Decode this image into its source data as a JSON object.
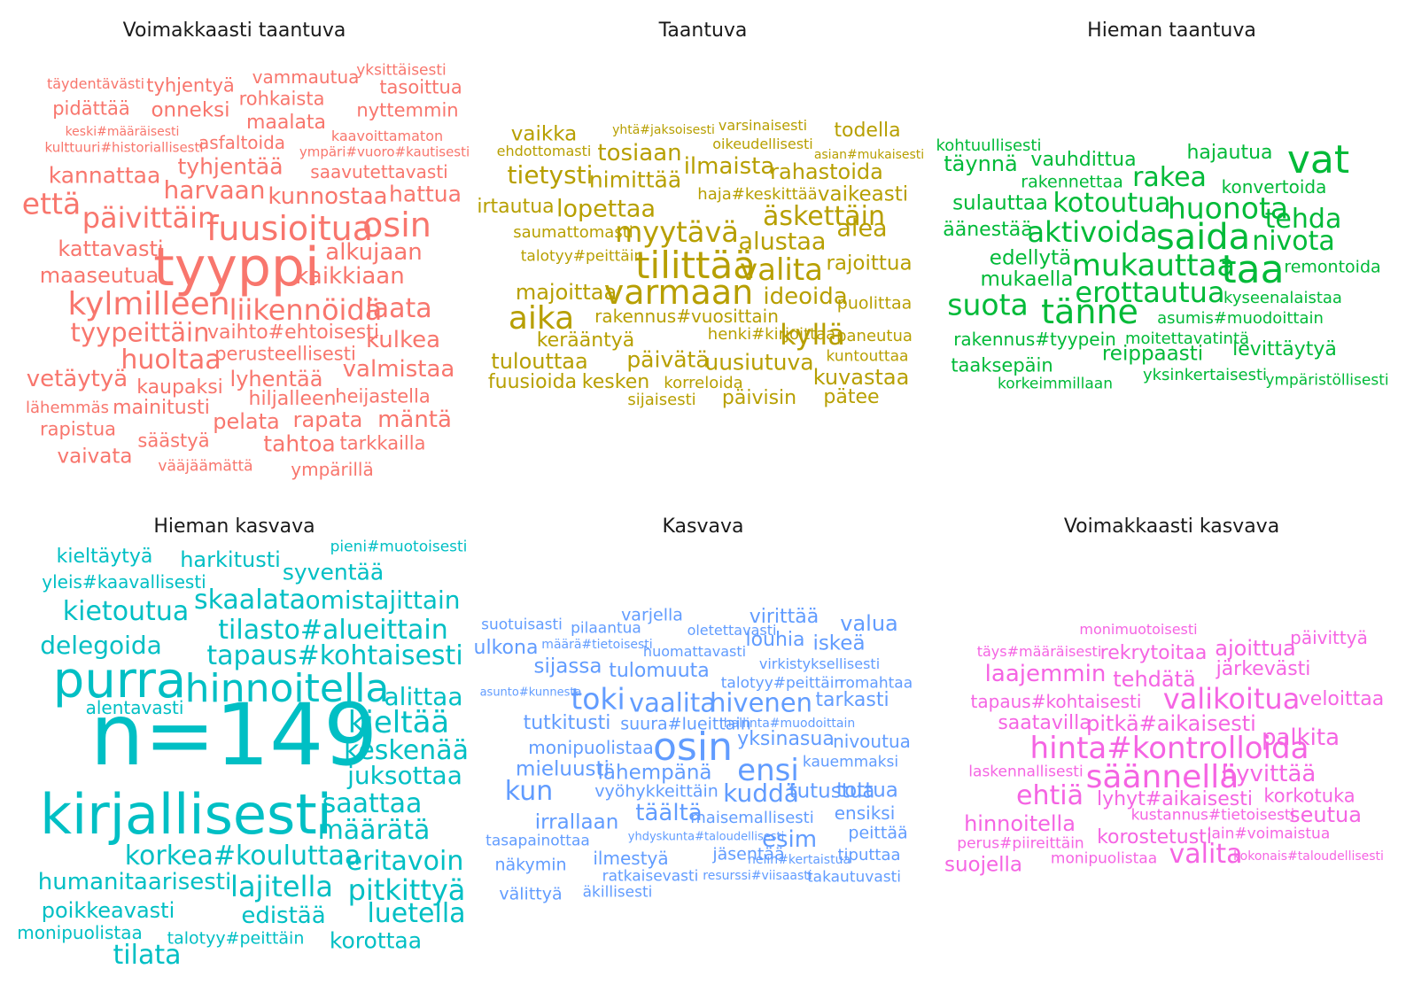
{
  "panels": [
    {
      "title": "Voimakkaasti taantuva",
      "color": "#F8766D",
      "words": [
        {
          "t": "täydentävästi",
          "s": 16
        },
        {
          "t": "tyhjentyä",
          "s": 21
        },
        {
          "t": "vammautua",
          "s": 20
        },
        {
          "t": "yksittäisesti",
          "s": 17
        },
        {
          "t": "tasoittua",
          "s": 21
        },
        {
          "t": "pidättää",
          "s": 21
        },
        {
          "t": "onneksi",
          "s": 23
        },
        {
          "t": "rohkaista",
          "s": 21
        },
        {
          "t": "nyttemmin",
          "s": 21
        },
        {
          "t": "keski#määräisesti",
          "s": 14
        },
        {
          "t": "maalata",
          "s": 22
        },
        {
          "t": "kaavoittamaton",
          "s": 16
        },
        {
          "t": "kulttuuri#historiallisesti",
          "s": 15
        },
        {
          "t": "asfaltoida",
          "s": 20
        },
        {
          "t": "ympäri#vuoro#kautisesti",
          "s": 15
        },
        {
          "t": "kannattaa",
          "s": 25
        },
        {
          "t": "tyhjentää",
          "s": 25
        },
        {
          "t": "saavutettavasti",
          "s": 20
        },
        {
          "t": "harvaan",
          "s": 28
        },
        {
          "t": "kunnostaa",
          "s": 26
        },
        {
          "t": "hattua",
          "s": 25
        },
        {
          "t": "että",
          "s": 33
        },
        {
          "t": "päivittäin",
          "s": 32
        },
        {
          "t": "fuusioitua",
          "s": 38
        },
        {
          "t": "osin",
          "s": 38
        },
        {
          "t": "kattavasti",
          "s": 24
        },
        {
          "t": "alkujaan",
          "s": 26
        },
        {
          "t": "maaseutua",
          "s": 24
        },
        {
          "t": "tyyppi",
          "s": 60
        },
        {
          "t": "kaikkiaan",
          "s": 26
        },
        {
          "t": "kylmilleen",
          "s": 36
        },
        {
          "t": "liikennöidä",
          "s": 32
        },
        {
          "t": "laata",
          "s": 30
        },
        {
          "t": "tyypeittäin",
          "s": 29
        },
        {
          "t": "vaihto#ehtoisesti",
          "s": 22
        },
        {
          "t": "kulkea",
          "s": 26
        },
        {
          "t": "huoltaa",
          "s": 30
        },
        {
          "t": "perusteellisesti",
          "s": 21
        },
        {
          "t": "valmistaa",
          "s": 26
        },
        {
          "t": "vetäytyä",
          "s": 26
        },
        {
          "t": "kaupaksi",
          "s": 22
        },
        {
          "t": "lyhentää",
          "s": 24
        },
        {
          "t": "hiljalleen",
          "s": 22
        },
        {
          "t": "heijastella",
          "s": 21
        },
        {
          "t": "lähemmäs",
          "s": 18
        },
        {
          "t": "mainitusti",
          "s": 22
        },
        {
          "t": "pelata",
          "s": 24
        },
        {
          "t": "rapata",
          "s": 24
        },
        {
          "t": "mäntä",
          "s": 26
        },
        {
          "t": "rapistua",
          "s": 21
        },
        {
          "t": "säästyä",
          "s": 21
        },
        {
          "t": "tahtoa",
          "s": 25
        },
        {
          "t": "tarkkailla",
          "s": 21
        },
        {
          "t": "vaivata",
          "s": 23
        },
        {
          "t": "vääjäämättä",
          "s": 17
        },
        {
          "t": "ympärillä",
          "s": 20
        }
      ]
    },
    {
      "title": "Taantuva",
      "color": "#B79F00",
      "words": [
        {
          "t": "vaikka",
          "s": 23
        },
        {
          "t": "yhtä#jaksoisesti",
          "s": 14
        },
        {
          "t": "varsinaisesti",
          "s": 16
        },
        {
          "t": "todella",
          "s": 22
        },
        {
          "t": "ehdottomasti",
          "s": 16
        },
        {
          "t": "oikeudellisesti",
          "s": 16
        },
        {
          "t": "asian#mukaisesti",
          "s": 14
        },
        {
          "t": "tosiaan",
          "s": 26
        },
        {
          "t": "ilmaista",
          "s": 26
        },
        {
          "t": "tietysti",
          "s": 28
        },
        {
          "t": "nimittää",
          "s": 25
        },
        {
          "t": "rahastoida",
          "s": 24
        },
        {
          "t": "haja#keskittää",
          "s": 18
        },
        {
          "t": "vaikeasti",
          "s": 23
        },
        {
          "t": "irtautua",
          "s": 22
        },
        {
          "t": "lopettaa",
          "s": 27
        },
        {
          "t": "äskettäin",
          "s": 30
        },
        {
          "t": "saumattomasti",
          "s": 18
        },
        {
          "t": "myytävä",
          "s": 32
        },
        {
          "t": "alustaa",
          "s": 27
        },
        {
          "t": "alea",
          "s": 27
        },
        {
          "t": "talotyy#peittäin",
          "s": 17
        },
        {
          "t": "tilittää",
          "s": 42
        },
        {
          "t": "valita",
          "s": 34
        },
        {
          "t": "rajoittua",
          "s": 23
        },
        {
          "t": "majoittaa",
          "s": 24
        },
        {
          "t": "varmaan",
          "s": 38
        },
        {
          "t": "ideoida",
          "s": 26
        },
        {
          "t": "puolittaa",
          "s": 19
        },
        {
          "t": "aika",
          "s": 36
        },
        {
          "t": "rakennus#vuosittain",
          "s": 20
        },
        {
          "t": "henki#kirjoittaa",
          "s": 18
        },
        {
          "t": "kyllä",
          "s": 32
        },
        {
          "t": "paneutua",
          "s": 18
        },
        {
          "t": "kerääntyä",
          "s": 22
        },
        {
          "t": "tulouttaa",
          "s": 24
        },
        {
          "t": "päivätä",
          "s": 25
        },
        {
          "t": "uusiutuva",
          "s": 25
        },
        {
          "t": "kuntouttaa",
          "s": 17
        },
        {
          "t": "fuusioida",
          "s": 22
        },
        {
          "t": "kesken",
          "s": 22
        },
        {
          "t": "korreloida",
          "s": 18
        },
        {
          "t": "kuvastaa",
          "s": 24
        },
        {
          "t": "sijaisesti",
          "s": 18
        },
        {
          "t": "päivisin",
          "s": 22
        },
        {
          "t": "pätee",
          "s": 22
        }
      ]
    },
    {
      "title": "Hieman taantuva",
      "color": "#00BA38",
      "words": [
        {
          "t": "kohtuullisesti",
          "s": 18
        },
        {
          "t": "hajautua",
          "s": 22
        },
        {
          "t": "vat",
          "s": 44
        },
        {
          "t": "täynnä",
          "s": 24
        },
        {
          "t": "vauhdittua",
          "s": 22
        },
        {
          "t": "rakennettaa",
          "s": 19
        },
        {
          "t": "rakea",
          "s": 30
        },
        {
          "t": "konvertoida",
          "s": 20
        },
        {
          "t": "sulauttaa",
          "s": 23
        },
        {
          "t": "kotoutua",
          "s": 30
        },
        {
          "t": "huonota",
          "s": 33
        },
        {
          "t": "tehda",
          "s": 30
        },
        {
          "t": "äänestää",
          "s": 22
        },
        {
          "t": "aktivoida",
          "s": 32
        },
        {
          "t": "saida",
          "s": 40
        },
        {
          "t": "nivota",
          "s": 30
        },
        {
          "t": "edellytä",
          "s": 23
        },
        {
          "t": "mukauttaa",
          "s": 34
        },
        {
          "t": "taa",
          "s": 44
        },
        {
          "t": "remontoida",
          "s": 19
        },
        {
          "t": "mukaella",
          "s": 23
        },
        {
          "t": "erottautua",
          "s": 32
        },
        {
          "t": "kyseenalaistaa",
          "s": 18
        },
        {
          "t": "suota",
          "s": 33
        },
        {
          "t": "tänne",
          "s": 38
        },
        {
          "t": "asumis#muodoittain",
          "s": 18
        },
        {
          "t": "rakennus#tyypein",
          "s": 20
        },
        {
          "t": "moitettavatintä",
          "s": 18
        },
        {
          "t": "levittäytyä",
          "s": 22
        },
        {
          "t": "reippaasti",
          "s": 23
        },
        {
          "t": "taaksepäin",
          "s": 21
        },
        {
          "t": "yksinkertaisesti",
          "s": 18
        },
        {
          "t": "korkeimmillaan",
          "s": 17
        },
        {
          "t": "ympäristöllisesti",
          "s": 17
        }
      ]
    },
    {
      "title": "Hieman kasvava",
      "color": "#00BFC4",
      "words": [
        {
          "t": "pieni#muotoisesti",
          "s": 17
        },
        {
          "t": "kieltäytyä",
          "s": 22
        },
        {
          "t": "harkitusti",
          "s": 24
        },
        {
          "t": "yleis#kaavallisesti",
          "s": 20
        },
        {
          "t": "syventää",
          "s": 25
        },
        {
          "t": "kietoutua",
          "s": 30
        },
        {
          "t": "skaalata",
          "s": 30
        },
        {
          "t": "omistajittain",
          "s": 28
        },
        {
          "t": "tilasto#alueittain",
          "s": 30
        },
        {
          "t": "delegoida",
          "s": 28
        },
        {
          "t": "tapaus#kohtaisesti",
          "s": 30
        },
        {
          "t": "purra",
          "s": 56
        },
        {
          "t": "hinnoitella",
          "s": 44
        },
        {
          "t": "alittaa",
          "s": 28
        },
        {
          "t": "alentavasti",
          "s": 20
        },
        {
          "t": "n=149",
          "s": 96
        },
        {
          "t": "kieltää",
          "s": 34
        },
        {
          "t": "keskenään",
          "s": 30
        },
        {
          "t": "juksottaa",
          "s": 28
        },
        {
          "t": "kirjallisesti",
          "s": 62
        },
        {
          "t": "saattaa",
          "s": 30
        },
        {
          "t": "määrätä",
          "s": 30
        },
        {
          "t": "korkea#kouluttaa",
          "s": 30
        },
        {
          "t": "eritavoin",
          "s": 30
        },
        {
          "t": "humanitaarisesti",
          "s": 26
        },
        {
          "t": "lajitella",
          "s": 32
        },
        {
          "t": "pitkittyä",
          "s": 32
        },
        {
          "t": "poikkeavasti",
          "s": 24
        },
        {
          "t": "edistää",
          "s": 26
        },
        {
          "t": "luetella",
          "s": 30
        },
        {
          "t": "monipuolistaa",
          "s": 20
        },
        {
          "t": "talotyy#peittäin",
          "s": 19
        },
        {
          "t": "korottaa",
          "s": 25
        },
        {
          "t": "tilata",
          "s": 30
        }
      ]
    },
    {
      "title": "Kasvava",
      "color": "#619CFF",
      "words": [
        {
          "t": "varjella",
          "s": 19
        },
        {
          "t": "virittää",
          "s": 22
        },
        {
          "t": "suotuisasti",
          "s": 17
        },
        {
          "t": "pilaantua",
          "s": 17
        },
        {
          "t": "oletettavasti",
          "s": 16
        },
        {
          "t": "valua",
          "s": 24
        },
        {
          "t": "louhia",
          "s": 22
        },
        {
          "t": "iskeä",
          "s": 23
        },
        {
          "t": "ulkona",
          "s": 22
        },
        {
          "t": "määrä#tietoisesti",
          "s": 14
        },
        {
          "t": "huomattavasti",
          "s": 16
        },
        {
          "t": "virkistyksellisesti",
          "s": 16
        },
        {
          "t": "sijassa",
          "s": 23
        },
        {
          "t": "tulomuuta",
          "s": 22
        },
        {
          "t": "talotyy#peittäin",
          "s": 17
        },
        {
          "t": "romahtaa",
          "s": 17
        },
        {
          "t": "asunto#kunnesta",
          "s": 13
        },
        {
          "t": "toki",
          "s": 33
        },
        {
          "t": "vaalita",
          "s": 29
        },
        {
          "t": "hivenen",
          "s": 29
        },
        {
          "t": "tarkasti",
          "s": 22
        },
        {
          "t": "tutkitusti",
          "s": 22
        },
        {
          "t": "suura#lueittain",
          "s": 19
        },
        {
          "t": "hallinta#muodoittain",
          "s": 14
        },
        {
          "t": "yksinasua",
          "s": 22
        },
        {
          "t": "osin",
          "s": 44
        },
        {
          "t": "nivoutua",
          "s": 20
        },
        {
          "t": "monipuolistaa",
          "s": 20
        },
        {
          "t": "mieluusti",
          "s": 23
        },
        {
          "t": "ensi",
          "s": 34
        },
        {
          "t": "kauemmaksi",
          "s": 17
        },
        {
          "t": "lähempänä",
          "s": 23
        },
        {
          "t": "kun",
          "s": 30
        },
        {
          "t": "vyöhykkeittäin",
          "s": 19
        },
        {
          "t": "kuddä",
          "s": 28
        },
        {
          "t": "tutustua",
          "s": 23
        },
        {
          "t": "tottua",
          "s": 23
        },
        {
          "t": "irrallaan",
          "s": 23
        },
        {
          "t": "täältä",
          "s": 26
        },
        {
          "t": "maisemallisesti",
          "s": 18
        },
        {
          "t": "ensiksi",
          "s": 20
        },
        {
          "t": "tasapainottaa",
          "s": 17
        },
        {
          "t": "yhdyskunta#taloudellisesti",
          "s": 13
        },
        {
          "t": "esim",
          "s": 26
        },
        {
          "t": "peittää",
          "s": 19
        },
        {
          "t": "ilmestyä",
          "s": 20
        },
        {
          "t": "jäsentää",
          "s": 19
        },
        {
          "t": "nelin#kertaistua",
          "s": 14
        },
        {
          "t": "tiputtaa",
          "s": 18
        },
        {
          "t": "näkymin",
          "s": 19
        },
        {
          "t": "ratkaisevasti",
          "s": 17
        },
        {
          "t": "resurssi#viisaasti",
          "s": 14
        },
        {
          "t": "takautuvasti",
          "s": 17
        },
        {
          "t": "välittyä",
          "s": 19
        },
        {
          "t": "äkillisesti",
          "s": 17
        }
      ]
    },
    {
      "title": "Voimakkaasti kasvava",
      "color": "#F564E3",
      "words": [
        {
          "t": "monimuotoisesti",
          "s": 16
        },
        {
          "t": "päivittyä",
          "s": 20
        },
        {
          "t": "täys#määräisesti",
          "s": 16
        },
        {
          "t": "rekrytoitaa",
          "s": 22
        },
        {
          "t": "ajoittua",
          "s": 24
        },
        {
          "t": "laajemmin",
          "s": 26
        },
        {
          "t": "tehdätä",
          "s": 24
        },
        {
          "t": "järkevästi",
          "s": 22
        },
        {
          "t": "tapaus#kohtaisesti",
          "s": 20
        },
        {
          "t": "valikoitua",
          "s": 32
        },
        {
          "t": "veloittaa",
          "s": 22
        },
        {
          "t": "saatavilla",
          "s": 22
        },
        {
          "t": "pitkä#aikaisesti",
          "s": 24
        },
        {
          "t": "palkita",
          "s": 26
        },
        {
          "t": "hinta#kontrolloida",
          "s": 34
        },
        {
          "t": "laskennallisesti",
          "s": 17
        },
        {
          "t": "säännellä",
          "s": 36
        },
        {
          "t": "hyvittää",
          "s": 26
        },
        {
          "t": "ehtiä",
          "s": 30
        },
        {
          "t": "lyhyt#aikaisesti",
          "s": 22
        },
        {
          "t": "korkotuka",
          "s": 21
        },
        {
          "t": "hinnoitella",
          "s": 24
        },
        {
          "t": "kustannus#tietoisesti",
          "s": 17
        },
        {
          "t": "seutua",
          "s": 24
        },
        {
          "t": "perus#piireittäin",
          "s": 17
        },
        {
          "t": "korostetusti",
          "s": 22
        },
        {
          "t": "lain#voimaistua",
          "s": 17
        },
        {
          "t": "suojella",
          "s": 23
        },
        {
          "t": "monipuolistaa",
          "s": 17
        },
        {
          "t": "valita",
          "s": 30
        },
        {
          "t": "kokonais#taloudellisesti",
          "s": 14
        }
      ]
    }
  ]
}
